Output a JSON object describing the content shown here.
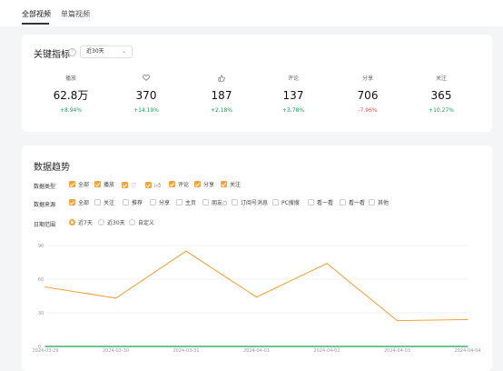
{
  "tabs": [
    {
      "label": "全部视频",
      "active": true
    },
    {
      "label": "单篇视频",
      "active": false
    }
  ],
  "key_metrics": {
    "title": "关键指标",
    "period_select": "近30天",
    "items": [
      {
        "icon": "",
        "label": "播放",
        "value": "62.8万",
        "change": "+8.94%",
        "trend": "up"
      },
      {
        "icon": "heart-icon",
        "label": "",
        "value": "370",
        "change": "+14.19%",
        "trend": "up"
      },
      {
        "icon": "thumbs-up-icon",
        "label": "",
        "value": "187",
        "change": "+2.18%",
        "trend": "up"
      },
      {
        "icon": "",
        "label": "评论",
        "value": "137",
        "change": "+3.78%",
        "trend": "up"
      },
      {
        "icon": "",
        "label": "分享",
        "value": "706",
        "change": "-7.96%",
        "trend": "down"
      },
      {
        "icon": "",
        "label": "关注",
        "value": "365",
        "change": "+10.27%",
        "trend": "up"
      }
    ]
  },
  "trend": {
    "title": "数据趋势",
    "data_type": {
      "label": "数据类型",
      "options": [
        {
          "label": "全部",
          "checked": true
        },
        {
          "label": "播放",
          "checked": true
        },
        {
          "label": "",
          "icon": "heart-icon",
          "checked": true
        },
        {
          "label": "",
          "icon": "thumbs-up-icon",
          "checked": true
        },
        {
          "label": "评论",
          "checked": true
        },
        {
          "label": "分享",
          "checked": true
        },
        {
          "label": "关注",
          "checked": true
        }
      ]
    },
    "data_source": {
      "label": "数据来源",
      "options": [
        {
          "label": "全部",
          "checked": true
        },
        {
          "label": "关注",
          "checked": false
        },
        {
          "label": "推荐",
          "checked": false
        },
        {
          "label": "分享",
          "checked": false
        },
        {
          "label": "主页",
          "checked": false
        },
        {
          "label": "朋友○",
          "checked": false
        },
        {
          "label": "订阅号消息",
          "checked": false
        },
        {
          "label": "PC搜搜",
          "checked": false
        },
        {
          "label": "看一看",
          "checked": false
        },
        {
          "label": "看一看",
          "checked": false
        },
        {
          "label": "其他",
          "checked": false
        }
      ]
    },
    "date_range": {
      "label": "日期范围",
      "options": [
        {
          "label": "近7天",
          "selected": true
        },
        {
          "label": "近30天",
          "selected": false
        },
        {
          "label": "自定义",
          "selected": false
        }
      ]
    }
  },
  "chart_data": {
    "type": "line",
    "x": [
      "2024-03-29",
      "2024-03-30",
      "2024-03-31",
      "2024-04-01",
      "2024-04-02",
      "2024-04-03",
      "2024-04-04"
    ],
    "series": [
      {
        "name": "",
        "color": "#f5a23c",
        "values": [
          53,
          43,
          85,
          44,
          74,
          23,
          24
        ]
      },
      {
        "name": "",
        "color": "#18a058",
        "values": [
          0,
          0,
          0,
          0,
          0,
          0,
          0
        ]
      }
    ],
    "yticks": [
      "0",
      "30",
      "60",
      "90"
    ],
    "ylim": [
      0,
      90
    ],
    "grid": true
  },
  "colors": {
    "accent": "#f5a23c",
    "up": "#18a058",
    "down": "#e34d4d"
  }
}
